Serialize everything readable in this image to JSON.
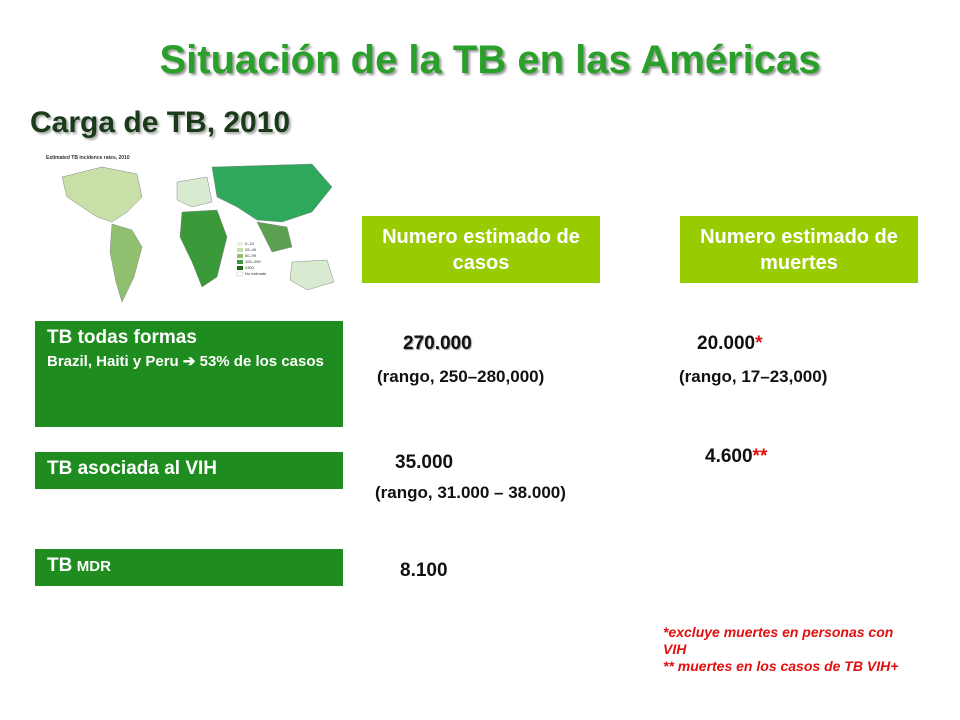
{
  "header": {
    "title": "Situación de la TB en las Américas",
    "subtitle": "Carga de TB, 2010"
  },
  "map": {
    "title": "Estimated TB incidence rates, 2010",
    "legend": [
      "0–24",
      "25–49",
      "50–99",
      "100–299",
      "≥300",
      "No estimate"
    ]
  },
  "table": {
    "columns": [
      "Numero estimado de casos",
      "Numero estimado de muertes"
    ],
    "rows": [
      {
        "label": "TB todas formas",
        "note": "Brazil, Haiti y Peru ➔ 53% de los casos",
        "cases": "270.000",
        "cases_range": "(rango, 250–280,000)",
        "deaths": "20.000",
        "deaths_mark": "*",
        "deaths_range": "(rango, 17–23,000)"
      },
      {
        "label": "TB asociada al VIH",
        "cases": "35.000",
        "cases_range": "(rango, 31.000 – 38.000)",
        "deaths": "4.600",
        "deaths_mark": "**"
      },
      {
        "label": "TB",
        "label_small": "MDR",
        "cases": "8.100"
      }
    ]
  },
  "footnotes": [
    "*excluye muertes en personas con VIH",
    "** muertes en los casos de TB VIH+"
  ]
}
